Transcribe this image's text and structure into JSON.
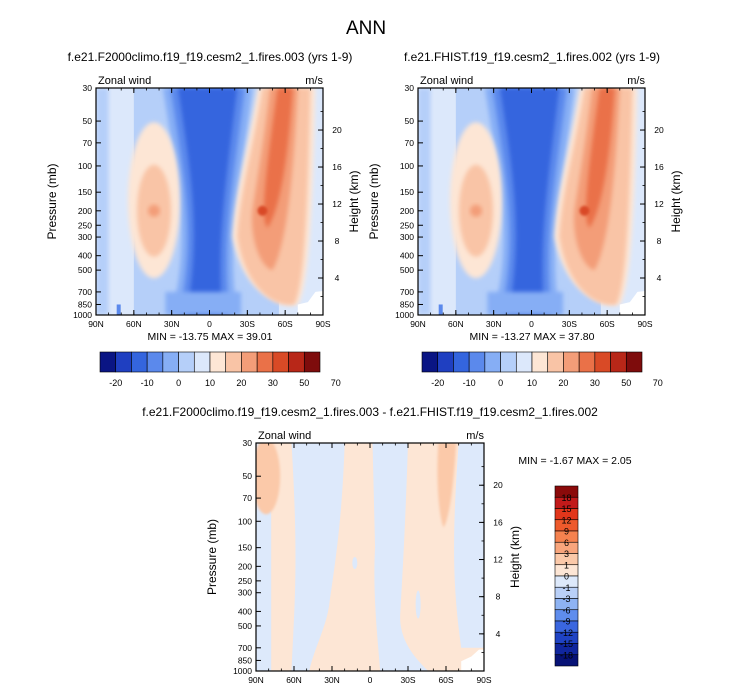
{
  "title": "ANN",
  "chart_data": [
    {
      "type": "heatmap",
      "title": "f.e21.F2000climo.f19_f19.cesm2_1.fires.003 (yrs 1-9)",
      "variable": "Zonal wind",
      "units": "m/s",
      "ylabel": "Pressure (mb)",
      "ylabel_right": "Height (km)",
      "x_ticks": [
        "90N",
        "60N",
        "30N",
        "0",
        "30S",
        "60S",
        "90S"
      ],
      "y_ticks": [
        "30",
        "50",
        "70",
        "100",
        "150",
        "200",
        "250",
        "300",
        "400",
        "500",
        "700",
        "850",
        "1000"
      ],
      "right_ticks": [
        "20",
        "16",
        "12",
        "8",
        "4"
      ],
      "y_scale": "log",
      "min_label": "MIN = -13.75",
      "max_label": "MAX =  39.01",
      "colorbar_orientation": "horizontal",
      "colorbar_labels": [
        "-20",
        "-10",
        "0",
        "10",
        "20",
        "30",
        "50",
        "70"
      ],
      "colorbar_colors": [
        "#0a1584",
        "#1f3fc1",
        "#3465de",
        "#5b89ec",
        "#86aef5",
        "#b5cff9",
        "#dce8fb",
        "#fde6d5",
        "#f9c4a6",
        "#f39d78",
        "#ea7148",
        "#d94a26",
        "#b82718",
        "#7e0c0c"
      ],
      "features": [
        {
          "kind": "westerly jet",
          "lat": 50,
          "pressure": 200,
          "peak": 39.01
        },
        {
          "kind": "westerly jet",
          "lat": -42,
          "pressure": 200,
          "peak": 27
        },
        {
          "kind": "tropical easterlies",
          "lat": 0,
          "pressure_range": [
            30,
            1000
          ],
          "min": -13.75
        }
      ]
    },
    {
      "type": "heatmap",
      "title": "f.e21.FHIST.f19_f19.cesm2_1.fires.002 (yrs 1-9)",
      "variable": "Zonal wind",
      "units": "m/s",
      "ylabel": "Pressure (mb)",
      "ylabel_right": "Height (km)",
      "x_ticks": [
        "90N",
        "60N",
        "30N",
        "0",
        "30S",
        "60S",
        "90S"
      ],
      "y_ticks": [
        "30",
        "50",
        "70",
        "100",
        "150",
        "200",
        "250",
        "300",
        "400",
        "500",
        "700",
        "850",
        "1000"
      ],
      "right_ticks": [
        "20",
        "16",
        "12",
        "8",
        "4"
      ],
      "y_scale": "log",
      "min_label": "MIN = -13.27",
      "max_label": "MAX =  37.80",
      "colorbar_orientation": "horizontal",
      "colorbar_labels": [
        "-20",
        "-10",
        "0",
        "10",
        "20",
        "30",
        "50",
        "70"
      ],
      "colorbar_colors": [
        "#0a1584",
        "#1f3fc1",
        "#3465de",
        "#5b89ec",
        "#86aef5",
        "#b5cff9",
        "#dce8fb",
        "#fde6d5",
        "#f9c4a6",
        "#f39d78",
        "#ea7148",
        "#d94a26",
        "#b82718",
        "#7e0c0c"
      ],
      "features": [
        {
          "kind": "westerly jet",
          "lat": 50,
          "pressure": 200,
          "peak": 37.8
        },
        {
          "kind": "westerly jet",
          "lat": -42,
          "pressure": 200,
          "peak": 27
        },
        {
          "kind": "tropical easterlies",
          "lat": 0,
          "pressure_range": [
            30,
            1000
          ],
          "min": -13.27
        }
      ]
    },
    {
      "type": "heatmap",
      "title": "f.e21.F2000climo.f19_f19.cesm2_1.fires.003 - f.e21.FHIST.f19_f19.cesm2_1.fires.002",
      "variable": "Zonal wind",
      "units": "m/s",
      "ylabel": "Pressure (mb)",
      "ylabel_right": "Height (km)",
      "x_ticks": [
        "90N",
        "60N",
        "30N",
        "0",
        "30S",
        "60S",
        "90S"
      ],
      "y_ticks": [
        "30",
        "50",
        "70",
        "100",
        "150",
        "200",
        "250",
        "300",
        "400",
        "500",
        "700",
        "850",
        "1000"
      ],
      "right_ticks": [
        "20",
        "16",
        "12",
        "8",
        "4"
      ],
      "y_scale": "log",
      "min_label": "MIN =  -1.67",
      "max_label": "MAX =   2.05",
      "colorbar_orientation": "vertical",
      "colorbar_labels": [
        "18",
        "15",
        "12",
        "9",
        "6",
        "3",
        "1",
        "0",
        "-1",
        "-3",
        "-6",
        "-9",
        "-12",
        "-15",
        "-18"
      ],
      "colorbar_colors": [
        "#8b0a0a",
        "#c21a1a",
        "#e2361b",
        "#ee5a2c",
        "#f5824f",
        "#f8a57c",
        "#fbc9a9",
        "#fde6d5",
        "#dde9fb",
        "#b9d0f8",
        "#8eb3f3",
        "#5f8ded",
        "#3a66df",
        "#1f43c4",
        "#10269e",
        "#071276"
      ]
    }
  ]
}
